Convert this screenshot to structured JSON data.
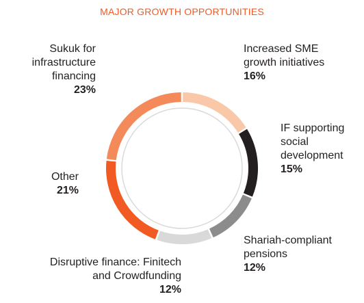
{
  "chart_data": {
    "type": "donut",
    "title": "MAJOR GROWTH OPPORTUNITIES",
    "categories": [
      "Increased SME\ngrowth initiatives",
      "IF supporting\nsocial\ndevelopment",
      "Shariah-compliant\npensions",
      "Disruptive finance: Finitech\nand Crowdfunding",
      "Other",
      "Sukuk for\ninfrastructure\nfinancing"
    ],
    "values": [
      16,
      15,
      12,
      12,
      21,
      23
    ],
    "value_labels": [
      "16%",
      "15%",
      "12%",
      "12%",
      "21%",
      "23%"
    ],
    "colors": [
      "#f9c8a8",
      "#231f20",
      "#8c8c8c",
      "#d9d9d9",
      "#f15a22",
      "#f4895a"
    ]
  }
}
